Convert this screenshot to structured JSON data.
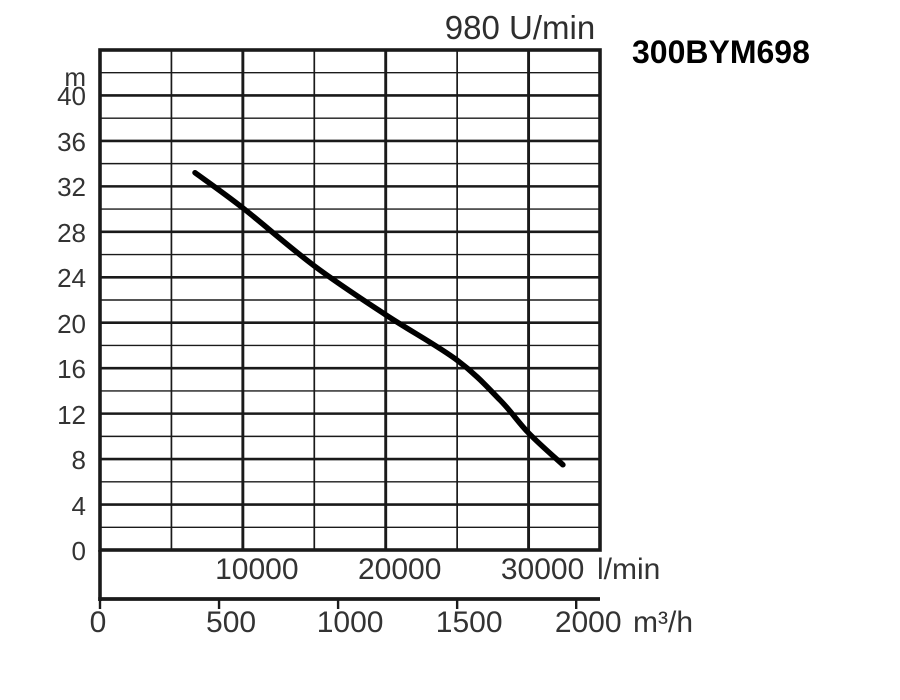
{
  "chart_data": {
    "type": "line",
    "title": "980 U/min",
    "model": "300BYM698",
    "grid": true,
    "legend": false,
    "y_axis": {
      "unit": "m",
      "min": 0,
      "max": 44,
      "minor_step": 2,
      "major_step": 4,
      "tick_labels": [
        40,
        36,
        32,
        28,
        24,
        20,
        16,
        12,
        8,
        4,
        0
      ]
    },
    "x_axis_primary": {
      "unit": "l/min",
      "min": 0,
      "max": 35000,
      "minor_step": 5000,
      "major_step": 10000,
      "tick_labels": [
        10000,
        20000,
        30000
      ]
    },
    "x_axis_secondary": {
      "unit": "m³/h",
      "tick_labels": [
        0,
        500,
        1000,
        1500,
        2000
      ]
    },
    "series": [
      {
        "name": "head_vs_flow_curve",
        "points": [
          {
            "flow_lmin": 6650,
            "head_m": 33.2
          },
          {
            "flow_lmin": 10000,
            "head_m": 30.1
          },
          {
            "flow_lmin": 15000,
            "head_m": 25.0
          },
          {
            "flow_lmin": 20000,
            "head_m": 20.7
          },
          {
            "flow_lmin": 25000,
            "head_m": 16.7
          },
          {
            "flow_lmin": 28000,
            "head_m": 13.2
          },
          {
            "flow_lmin": 30000,
            "head_m": 10.3
          },
          {
            "flow_lmin": 32400,
            "head_m": 7.5
          }
        ]
      }
    ],
    "colors": {
      "curve": "#000000",
      "grid": "#1a1a1a",
      "text": "#333333"
    }
  }
}
